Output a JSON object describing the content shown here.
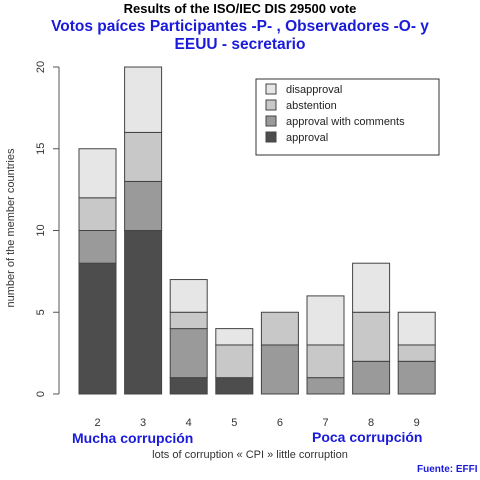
{
  "chart_data": {
    "type": "bar",
    "stacked": true,
    "title": "Results of the ISO/IEC DIS 29500 vote",
    "xlabel": "lots of corruption « CPI » little corruption",
    "ylabel": "number of the member countries",
    "ylim": [
      0,
      20
    ],
    "yticks": [
      "0",
      "5",
      "10",
      "15",
      "20"
    ],
    "categories": [
      "2",
      "3",
      "4",
      "5",
      "6",
      "7",
      "8",
      "9"
    ],
    "series": [
      {
        "name": "approval",
        "color": "#4d4d4d",
        "values": [
          8,
          10,
          1,
          1,
          0,
          0,
          0,
          0
        ]
      },
      {
        "name": "approval with comments",
        "color": "#9a9a9a",
        "values": [
          2,
          3,
          3,
          0,
          3,
          1,
          2,
          2
        ]
      },
      {
        "name": "abstention",
        "color": "#c8c8c8",
        "values": [
          2,
          3,
          1,
          2,
          2,
          2,
          3,
          1
        ]
      },
      {
        "name": "disapproval",
        "color": "#e6e6e6",
        "values": [
          3,
          4,
          2,
          1,
          0,
          3,
          3,
          2
        ]
      }
    ],
    "legend_order": [
      "disapproval",
      "abstention",
      "approval with comments",
      "approval"
    ],
    "legend_position": "top-right",
    "grid": false
  },
  "annotations": {
    "overlay_line1": "Votos paíces Participantes -P- , Observadores -O- y",
    "overlay_line2": "EEUU - secretario",
    "low_cpi_label": "Mucha corrupción",
    "high_cpi_label": "Poca corrupción",
    "source": "Fuente: EFFI",
    "overlay_color": "#1a1adb"
  }
}
